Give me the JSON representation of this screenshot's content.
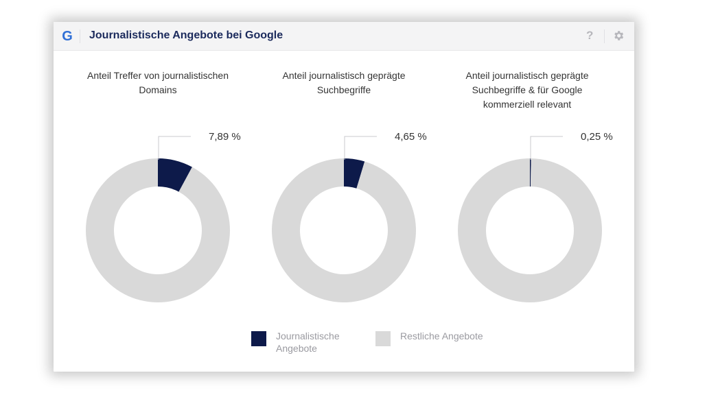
{
  "header": {
    "title": "Journalistische Angebote bei Google",
    "logo_letter": "G",
    "help_icon": "?",
    "icons": [
      "google-g-icon",
      "help-icon",
      "gear-icon"
    ]
  },
  "colors": {
    "journalistic": "#0d1a4a",
    "rest": "#d9d9d9",
    "title": "#1b2a5c"
  },
  "legend": {
    "journalistic_label": "Journalistische Angebote",
    "rest_label": "Restliche Angebote"
  },
  "chart_data": [
    {
      "type": "pie",
      "title": "Anteil Treffer von journalistischen Domains",
      "categories": [
        "Journalistische Angebote",
        "Restliche Angebote"
      ],
      "values": [
        7.89,
        92.11
      ],
      "data_label": "7,89 %"
    },
    {
      "type": "pie",
      "title": "Anteil journalistisch geprägte Suchbegriffe",
      "categories": [
        "Journalistische Angebote",
        "Restliche Angebote"
      ],
      "values": [
        4.65,
        95.35
      ],
      "data_label": "4,65 %"
    },
    {
      "type": "pie",
      "title": "Anteil journalistisch geprägte Suchbegriffe & für Google kommerziell relevant",
      "categories": [
        "Journalistische Angebote",
        "Restliche Angebote"
      ],
      "values": [
        0.25,
        99.75
      ],
      "data_label": "0,25 %"
    }
  ]
}
